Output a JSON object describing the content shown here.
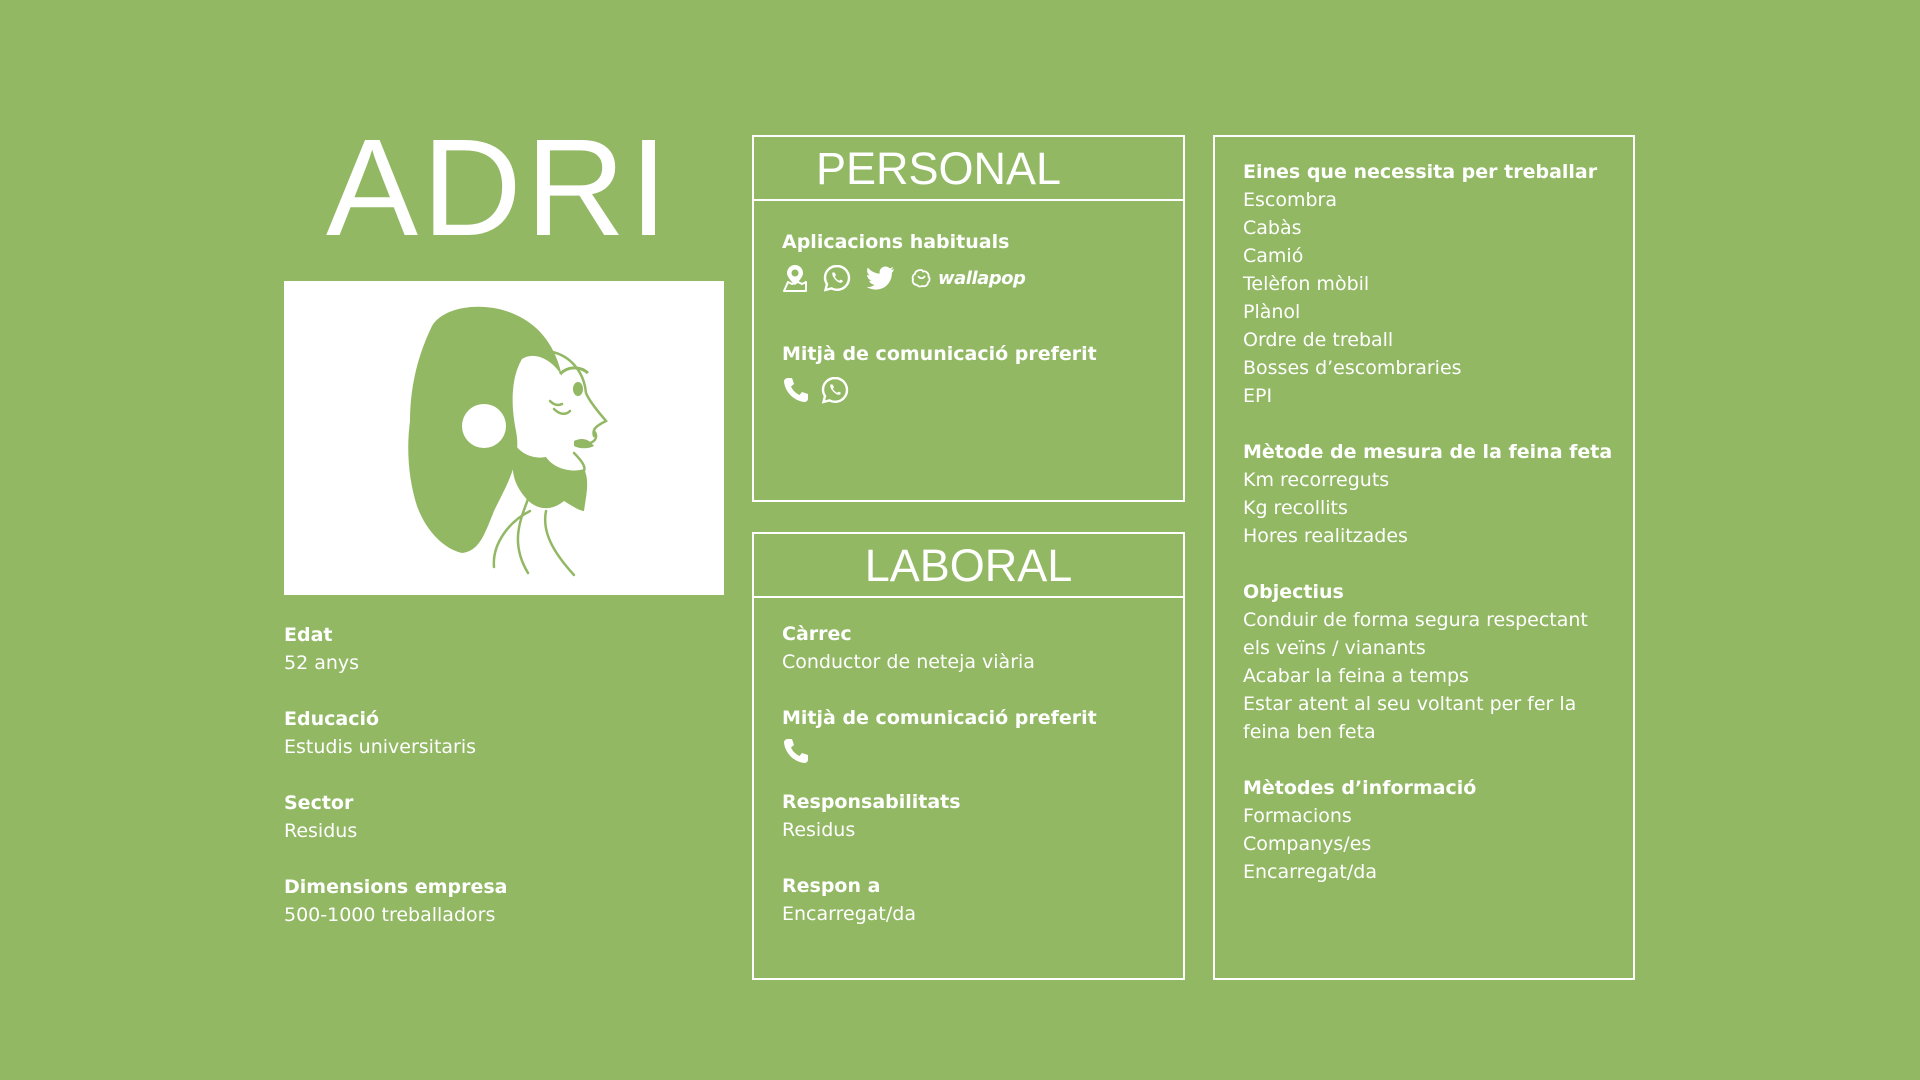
{
  "persona": {
    "name": "ADRI",
    "profile": [
      {
        "label": "Edat",
        "value": "52 anys"
      },
      {
        "label": "Educació",
        "value": "Estudis universitaris"
      },
      {
        "label": "Sector",
        "value": "Residus"
      },
      {
        "label": "Dimensions empresa",
        "value": "500-1000 treballadors"
      }
    ]
  },
  "personal": {
    "title": "PERSONAL",
    "apps_label": "Aplicacions habituals",
    "apps_icons": [
      "map-pin-icon",
      "whatsapp-icon",
      "twitter-icon",
      "wallapop-logo"
    ],
    "wallapop_text": "wallapop",
    "comm_label": "Mitjà de comunicació preferit",
    "comm_icons": [
      "phone-icon",
      "whatsapp-icon"
    ]
  },
  "laboral": {
    "title": "LABORAL",
    "role_label": "Càrrec",
    "role_value": "Conductor de neteja viària",
    "comm_label": "Mitjà de comunicació preferit",
    "comm_icons": [
      "phone-icon"
    ],
    "resp_label": "Responsabilitats",
    "resp_value": "Residus",
    "reports_label": "Respon a",
    "reports_value": "Encarregat/da"
  },
  "needs": {
    "tools_label": "Eines que necessita per treballar",
    "tools": [
      "Escombra",
      "Cabàs",
      "Camió",
      "Telèfon mòbil",
      "Plànol",
      "Ordre de treball",
      "Bosses d’escombraries",
      "EPI"
    ],
    "measure_label": "Mètode de mesura de la feina feta",
    "measure": [
      "Km recorreguts",
      "Kg recollits",
      "Hores realitzades"
    ],
    "goals_label": "Objectius",
    "goals": [
      "Conduir de forma segura respectant",
      "els veïns / vianants",
      "Acabar la feina a temps",
      "Estar atent al seu voltant per fer la",
      "feina ben feta"
    ],
    "info_label": "Mètodes d’informació",
    "info": [
      "Formacions",
      "Companys/es",
      "Encarregat/da"
    ]
  },
  "colors": {
    "background": "#92b864",
    "accent": "#ffffff"
  }
}
